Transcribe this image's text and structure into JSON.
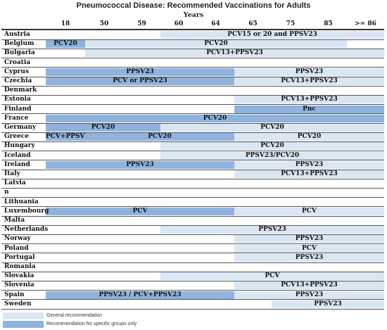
{
  "title": "Pneumococcal Disease: Recommended Vaccinations for Adults",
  "years_label": "Years",
  "age_columns": [
    "18",
    "50",
    "59",
    "60",
    "64",
    "65",
    "75",
    "85",
    ">= 86"
  ],
  "legend": {
    "general": "General recommendation",
    "specific": "Recommendation for specific groups only"
  },
  "colors": {
    "general": "#dbe6f3",
    "specific": "#8fb3de"
  },
  "rows": [
    {
      "country": "Austria",
      "bars": [
        {
          "from": 3,
          "to": 9,
          "type": "general",
          "label": "PCV15 or 20 and PPSV23"
        }
      ]
    },
    {
      "country": "Belgium",
      "bars": [
        {
          "from": 0,
          "to": 1,
          "type": "specific",
          "label": "PCV20"
        },
        {
          "from": 1,
          "to": 8,
          "type": "general",
          "label": "PCV20"
        }
      ]
    },
    {
      "country": "Bulgaria",
      "bars": [
        {
          "from": 1,
          "to": 9,
          "type": "general",
          "label": "PCV13+PPSV23"
        }
      ]
    },
    {
      "country": "Croatia",
      "bars": []
    },
    {
      "country": "Cyprus",
      "bars": [
        {
          "from": 0,
          "to": 5,
          "type": "specific",
          "label": "PPSV23"
        },
        {
          "from": 5,
          "to": 9,
          "type": "general",
          "label": "PPSV23"
        }
      ]
    },
    {
      "country": "Czechia",
      "bars": [
        {
          "from": 0,
          "to": 5,
          "type": "specific",
          "label": "PCV or PPSV23"
        },
        {
          "from": 5,
          "to": 9,
          "type": "general",
          "label": "PCV13+PPSV23"
        }
      ]
    },
    {
      "country": "Denmark",
      "bars": []
    },
    {
      "country": "Estonia",
      "bars": [
        {
          "from": 5,
          "to": 9,
          "type": "general",
          "label": "PCV13+PPSV23"
        }
      ]
    },
    {
      "country": "Finland",
      "bars": [
        {
          "from": 5,
          "to": 9,
          "type": "specific",
          "label": "Pnc"
        }
      ]
    },
    {
      "country": "France",
      "bars": [
        {
          "from": 0,
          "to": 9,
          "type": "specific",
          "label": "PCV20"
        }
      ]
    },
    {
      "country": "Germany",
      "bars": [
        {
          "from": 0,
          "to": 3,
          "type": "specific",
          "label": "PCV20"
        },
        {
          "from": 3,
          "to": 9,
          "type": "general",
          "label": "PCV20"
        }
      ]
    },
    {
      "country": "Greece",
      "bars": [
        {
          "from": 0,
          "to": 1,
          "type": "specific",
          "label": "PCV+PPSV23"
        },
        {
          "from": 1,
          "to": 5,
          "type": "specific",
          "label": "PCV20"
        },
        {
          "from": 5,
          "to": 9,
          "type": "general",
          "label": "PCV20"
        }
      ]
    },
    {
      "country": "Hungary",
      "bars": [
        {
          "from": 3,
          "to": 9,
          "type": "general",
          "label": "PCV20"
        }
      ]
    },
    {
      "country": "Iceland",
      "bars": [
        {
          "from": 3,
          "to": 9,
          "type": "general",
          "label": "PPSV23/PCV20"
        }
      ]
    },
    {
      "country": "Ireland",
      "bars": [
        {
          "from": 0,
          "to": 5,
          "type": "specific",
          "label": "PPSV23"
        },
        {
          "from": 5,
          "to": 9,
          "type": "general",
          "label": "PPSV23"
        }
      ]
    },
    {
      "country": "Italy",
      "bars": [
        {
          "from": 5,
          "to": 9,
          "type": "general",
          "label": "PCV13+PPSV23"
        }
      ]
    },
    {
      "country": "Latvia",
      "bars": []
    },
    {
      "country": "n",
      "bars": []
    },
    {
      "country": "Lithuania",
      "bars": []
    },
    {
      "country": "Luxembourg",
      "bars": [
        {
          "from": 0,
          "to": 5,
          "type": "specific",
          "label": "PCV"
        },
        {
          "from": 5,
          "to": 9,
          "type": "general",
          "label": "PCV"
        }
      ]
    },
    {
      "country": "Malta",
      "bars": []
    },
    {
      "country": "Netherlands",
      "bars": [
        {
          "from": 3,
          "to": 9,
          "type": "general",
          "label": "PPSV23"
        }
      ]
    },
    {
      "country": "Norway",
      "bars": [
        {
          "from": 5,
          "to": 9,
          "type": "general",
          "label": "PPSV23"
        }
      ]
    },
    {
      "country": "Poland",
      "bars": [
        {
          "from": 5,
          "to": 9,
          "type": "general",
          "label": "PCV"
        }
      ]
    },
    {
      "country": "Portugal",
      "bars": [
        {
          "from": 5,
          "to": 9,
          "type": "general",
          "label": "PPSV23"
        }
      ]
    },
    {
      "country": "Romania",
      "bars": []
    },
    {
      "country": "Slovakia",
      "bars": [
        {
          "from": 3,
          "to": 9,
          "type": "general",
          "label": "PCV"
        }
      ]
    },
    {
      "country": "Slovenia",
      "bars": [
        {
          "from": 5,
          "to": 9,
          "type": "general",
          "label": "PCV13+PPSV23"
        }
      ]
    },
    {
      "country": "Spain",
      "bars": [
        {
          "from": 0,
          "to": 5,
          "type": "specific",
          "label": "PPSV23 /  PCV+PPSV23"
        },
        {
          "from": 5,
          "to": 9,
          "type": "general",
          "label": "PPSV23"
        }
      ]
    },
    {
      "country": "Sweden",
      "bars": [
        {
          "from": 6,
          "to": 9,
          "type": "general",
          "label": "PPSV23"
        }
      ]
    }
  ]
}
